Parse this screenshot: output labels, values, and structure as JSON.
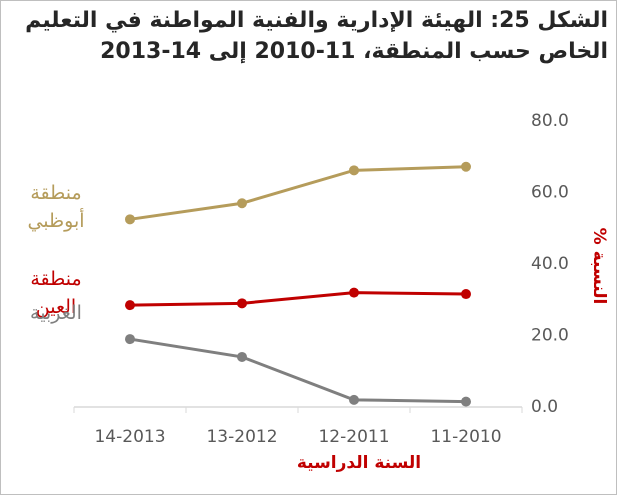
{
  "chart_data": {
    "type": "line",
    "title": "الشكل 25: الهيئة الإدارية والفنية المواطنة في التعليم الخاص حسب المنطقة، 11-2010 إلى 14-2013",
    "x_label": "السنة الدراسية",
    "y_label": "النسبة %",
    "categories": [
      "11-2010",
      "12-2011",
      "13-2012",
      "14-2013"
    ],
    "series": [
      {
        "name": "منطقة أبوظبي",
        "color": "#b59c5b",
        "values": [
          67.2,
          66.2,
          57.0,
          52.5
        ]
      },
      {
        "name": "منطقة العين",
        "color": "#c00000",
        "values": [
          31.6,
          32.0,
          29.0,
          28.5
        ]
      },
      {
        "name": "الغربية",
        "color": "#7f7f7f",
        "values": [
          1.5,
          2.0,
          14.0,
          19.0
        ]
      }
    ],
    "ylim": [
      0,
      80
    ],
    "yticks": [
      {
        "value": 0,
        "label": "0.0"
      },
      {
        "value": 20,
        "label": "20.0"
      },
      {
        "value": 40,
        "label": "40.0"
      },
      {
        "value": 60,
        "label": "60.0"
      },
      {
        "value": 80,
        "label": "80.0"
      }
    ],
    "grid": false,
    "reverse_x": true
  }
}
